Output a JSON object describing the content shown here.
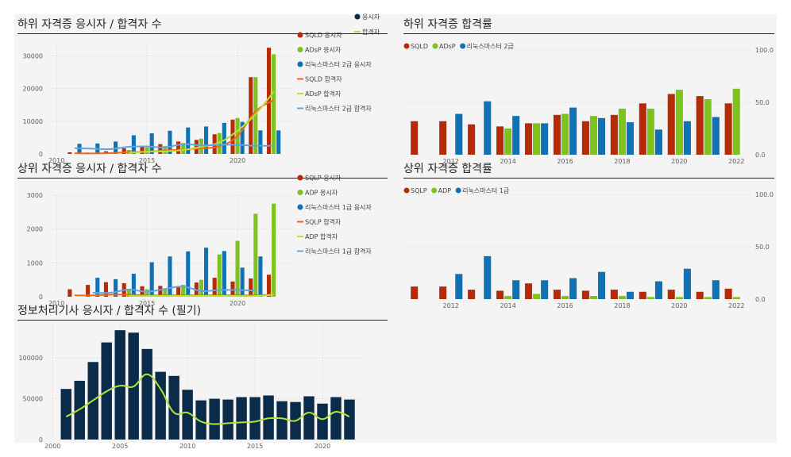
{
  "colors": {
    "red": "#b62a06",
    "green": "#7ec21e",
    "blue": "#0e72b5",
    "navy": "#0b2b4a",
    "orange": "#f0681a",
    "lime": "#b5e233",
    "lightblue": "#62a3e0",
    "grid": "#cfcfcf",
    "axis": "#605e5c"
  },
  "chart_data": [
    {
      "id": "c1",
      "type": "bar+line",
      "title": "하위 자격증 응시자 / 합격자 수",
      "x": [
        2011,
        2012,
        2013,
        2014,
        2015,
        2016,
        2017,
        2018,
        2019,
        2020,
        2021,
        2022
      ],
      "xticks": [
        2010,
        2015,
        2020
      ],
      "yticks": [
        0,
        10000,
        20000,
        30000
      ],
      "ylim": [
        0,
        34000
      ],
      "xlim": [
        2009.6,
        2023.2
      ],
      "bar_group_width": 0.8,
      "legend_position": "right",
      "series": [
        {
          "name": "SQLD 응시자",
          "kind": "bar",
          "color": "red",
          "values": [
            500,
            400,
            800,
            1700,
            2200,
            3000,
            3800,
            4300,
            6000,
            10500,
            23500,
            32500
          ]
        },
        {
          "name": "ADsP 응시자",
          "kind": "bar",
          "color": "green",
          "values": [
            null,
            null,
            null,
            1200,
            2000,
            2400,
            3300,
            4700,
            6400,
            11000,
            23500,
            30500
          ]
        },
        {
          "name": "리눅스마스터 2급 응시자",
          "kind": "bar",
          "color": "blue",
          "values": [
            3100,
            3200,
            3800,
            5700,
            6300,
            7100,
            8100,
            8400,
            9500,
            9800,
            7200,
            7200
          ]
        },
        {
          "name": "SQLD 합격자",
          "kind": "line",
          "color": "orange",
          "values": [
            200,
            150,
            250,
            550,
            700,
            1050,
            1350,
            1750,
            2350,
            5500,
            13000,
            16500
          ]
        },
        {
          "name": "ADsP 합격자",
          "kind": "line",
          "color": "lime",
          "values": [
            null,
            null,
            null,
            300,
            700,
            800,
            1200,
            2200,
            3500,
            7100,
            12200,
            19000
          ]
        },
        {
          "name": "리눅스마스터 2급 합격자",
          "kind": "line",
          "color": "lightblue",
          "values": [
            1800,
            1600,
            1500,
            2200,
            2300,
            2000,
            3000,
            2600,
            2800,
            2800,
            2500,
            2500
          ]
        }
      ]
    },
    {
      "id": "c2",
      "type": "bar",
      "title": "하위 자격증 합격률",
      "x": [
        2011,
        2012,
        2013,
        2014,
        2015,
        2016,
        2017,
        2018,
        2019,
        2020,
        2021,
        2022
      ],
      "xticks": [
        2012,
        2014,
        2016,
        2018,
        2020,
        2022
      ],
      "yticks": [
        0,
        50,
        100
      ],
      "ytick_labels": [
        "0.0",
        "50.0",
        "100.0"
      ],
      "ylim": [
        0,
        100
      ],
      "xlim": [
        2010.45,
        2022.55
      ],
      "bar_group_width": 0.84,
      "legend_position": "top-left",
      "series": [
        {
          "name": "SQLD",
          "color": "red",
          "values": [
            32,
            32,
            29,
            27,
            30,
            38,
            32,
            38,
            49,
            58,
            56,
            49
          ]
        },
        {
          "name": "ADsP",
          "color": "green",
          "values": [
            null,
            null,
            null,
            25,
            30,
            39,
            37,
            44,
            44,
            62,
            53,
            63
          ]
        },
        {
          "name": "리눅스마스터 2급",
          "color": "blue",
          "values": [
            null,
            39,
            51,
            37,
            30,
            45,
            35,
            31,
            24,
            32,
            36,
            null
          ]
        }
      ]
    },
    {
      "id": "c3",
      "type": "bar+line",
      "title": "상위 자격증 응시자 / 합격자 수",
      "x": [
        2011,
        2012,
        2013,
        2014,
        2015,
        2016,
        2017,
        2018,
        2019,
        2020,
        2021,
        2022
      ],
      "xticks": [
        2010,
        2015,
        2020
      ],
      "yticks": [
        0,
        1000,
        2000,
        3000
      ],
      "ylim": [
        0,
        3000
      ],
      "xlim": [
        2009.6,
        2023.2
      ],
      "bar_group_width": 0.8,
      "legend_position": "right",
      "series": [
        {
          "name": "SQLP 응시자",
          "kind": "bar",
          "color": "red",
          "values": [
            220,
            350,
            430,
            400,
            310,
            320,
            300,
            420,
            560,
            450,
            540,
            650
          ]
        },
        {
          "name": "ADP 응시자",
          "kind": "bar",
          "color": "green",
          "values": [
            null,
            null,
            null,
            220,
            220,
            240,
            350,
            500,
            1250,
            1650,
            2450,
            2750
          ]
        },
        {
          "name": "리눅스마스터 1급 응시자",
          "kind": "bar",
          "color": "blue",
          "values": [
            null,
            560,
            520,
            680,
            1020,
            1190,
            1340,
            1450,
            1350,
            860,
            1190,
            null
          ]
        },
        {
          "name": "SQLP 합격자",
          "kind": "line",
          "color": "orange",
          "values": [
            40,
            40,
            60,
            60,
            40,
            40,
            40,
            40,
            40,
            40,
            40,
            60
          ]
        },
        {
          "name": "ADP 합격자",
          "kind": "line",
          "color": "lime",
          "values": [
            null,
            null,
            null,
            20,
            20,
            20,
            20,
            20,
            20,
            20,
            20,
            60
          ]
        },
        {
          "name": "리눅스마스터 1급 합격자",
          "kind": "line",
          "color": "lightblue",
          "values": [
            null,
            120,
            120,
            210,
            150,
            230,
            300,
            170,
            200,
            200,
            180,
            null
          ]
        }
      ]
    },
    {
      "id": "c4",
      "type": "bar",
      "title": "상위 자격증 합격률",
      "x": [
        2011,
        2012,
        2013,
        2014,
        2015,
        2016,
        2017,
        2018,
        2019,
        2020,
        2021,
        2022
      ],
      "xticks": [
        2012,
        2014,
        2016,
        2018,
        2020,
        2022
      ],
      "yticks": [
        0,
        50,
        100
      ],
      "ytick_labels": [
        "0.0",
        "50.0",
        "100.0"
      ],
      "ylim": [
        0,
        100
      ],
      "xlim": [
        2010.45,
        2022.55
      ],
      "bar_group_width": 0.84,
      "legend_position": "top-left",
      "series": [
        {
          "name": "SQLP",
          "color": "red",
          "values": [
            12,
            12,
            9,
            8,
            15,
            9,
            8,
            9,
            7,
            9,
            7,
            10
          ]
        },
        {
          "name": "ADP",
          "color": "green",
          "values": [
            null,
            null,
            null,
            3,
            5,
            3,
            3,
            3,
            2,
            2,
            2,
            2
          ]
        },
        {
          "name": "리눅스마스터 1급",
          "color": "blue",
          "values": [
            null,
            24,
            41,
            18,
            18,
            20,
            26,
            7,
            17,
            29,
            18,
            null
          ]
        }
      ]
    },
    {
      "id": "c5",
      "type": "bar+line",
      "title": "정보처리기사 응시자 / 합격자 수 (필기)",
      "x": [
        2001,
        2002,
        2003,
        2004,
        2005,
        2006,
        2007,
        2008,
        2009,
        2010,
        2011,
        2012,
        2013,
        2014,
        2015,
        2016,
        2017,
        2018,
        2019,
        2020,
        2021,
        2022
      ],
      "xticks": [
        2000,
        2005,
        2010,
        2015,
        2020
      ],
      "yticks": [
        0,
        50000,
        100000
      ],
      "ylim": [
        0,
        140000
      ],
      "xlim": [
        1999.75,
        2023
      ],
      "bar_group_width": 0.85,
      "legend_position": "top-right",
      "series": [
        {
          "name": "응시자",
          "kind": "bar",
          "color": "navy",
          "values": [
            62000,
            72000,
            95000,
            119000,
            134000,
            131000,
            111000,
            83000,
            78000,
            61000,
            48000,
            50000,
            49000,
            52000,
            52000,
            54000,
            47000,
            46000,
            53000,
            44000,
            52000,
            49000
          ]
        },
        {
          "name": "합격자",
          "kind": "line",
          "color": "lime",
          "values": [
            28000,
            37000,
            48000,
            59000,
            66000,
            65000,
            80000,
            62000,
            33000,
            33000,
            22000,
            19000,
            20000,
            21000,
            22000,
            26000,
            26000,
            23000,
            33000,
            25000,
            34000,
            28000
          ]
        }
      ]
    }
  ]
}
